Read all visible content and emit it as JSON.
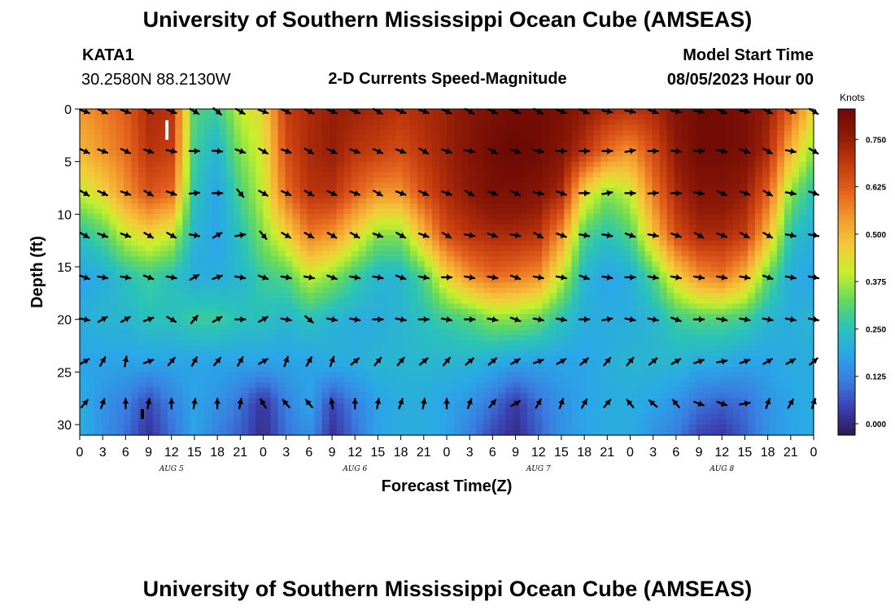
{
  "header": {
    "title": "University of Southern Mississippi Ocean Cube (AMSEAS)",
    "station_id": "KATA1",
    "coordinates": "30.2580N  88.2130W",
    "subtitle": "2-D Currents Speed-Magnitude",
    "model_start_label": "Model Start Time",
    "model_start_value": "08/05/2023 Hour 00"
  },
  "footer": {
    "title": "University of Southern Mississippi Ocean Cube (AMSEAS)"
  },
  "colors": {
    "background": "#ffffff",
    "scale": [
      "#2b1a4f",
      "#3b3fb0",
      "#3a7de0",
      "#2aa7e8",
      "#2bc3b6",
      "#66d95c",
      "#c8ef2c",
      "#f5c83a",
      "#f29b2e",
      "#e3601d",
      "#c23a0e",
      "#8f1a08",
      "#6e0a04"
    ]
  },
  "chart_data": {
    "type": "heatmap",
    "title": "2-D Currents Speed-Magnitude",
    "xlabel": "Forecast Time(Z)",
    "ylabel": "Depth (ft)",
    "units": "Knots",
    "xlim_hours": [
      0,
      96
    ],
    "ylim_ft": [
      0,
      31
    ],
    "x_tick_labels": [
      "0",
      "3",
      "6",
      "9",
      "12",
      "15",
      "18",
      "21",
      "0",
      "3",
      "6",
      "9",
      "12",
      "15",
      "18",
      "21",
      "0",
      "3",
      "6",
      "9",
      "12",
      "15",
      "18",
      "21",
      "0",
      "3",
      "6",
      "9",
      "12",
      "15",
      "18",
      "21",
      "0"
    ],
    "date_labels": [
      {
        "hour": 12,
        "label": "AUG 5"
      },
      {
        "hour": 36,
        "label": "AUG 6"
      },
      {
        "hour": 60,
        "label": "AUG 7"
      },
      {
        "hour": 84,
        "label": "AUG 8"
      }
    ],
    "y_ticks": [
      0,
      5,
      10,
      15,
      20,
      25,
      30
    ],
    "y_tick_labels": [
      "0",
      "5",
      "10",
      "15",
      "20",
      "25",
      "30"
    ],
    "colorbar": {
      "label": "Knots",
      "range": [
        -0.03,
        0.83
      ],
      "ticks": [
        "0.750",
        "0.625",
        "0.500",
        "0.375",
        "0.250",
        "0.125",
        "0.000"
      ],
      "tick_values": [
        0.75,
        0.625,
        0.5,
        0.375,
        0.25,
        0.125,
        0.0
      ]
    },
    "grid_hours": [
      0,
      3,
      6,
      9,
      12,
      15,
      18,
      21,
      24,
      27,
      30,
      33,
      36,
      39,
      42,
      45,
      48,
      51,
      54,
      57,
      60,
      63,
      66,
      69,
      72,
      75,
      78,
      81,
      84,
      87,
      90,
      93,
      96
    ],
    "grid_depths_ft": [
      0,
      4,
      8,
      12,
      16,
      20,
      24,
      28,
      31
    ],
    "speed_knots": [
      [
        0.55,
        0.58,
        0.62,
        0.72,
        0.7,
        0.3,
        0.28,
        0.4,
        0.45,
        0.68,
        0.72,
        0.75,
        0.74,
        0.72,
        0.7,
        0.72,
        0.74,
        0.78,
        0.8,
        0.82,
        0.82,
        0.8,
        0.76,
        0.72,
        0.7,
        0.72,
        0.78,
        0.82,
        0.82,
        0.8,
        0.75,
        0.62,
        0.45
      ],
      [
        0.5,
        0.55,
        0.6,
        0.7,
        0.68,
        0.28,
        0.22,
        0.35,
        0.42,
        0.65,
        0.72,
        0.75,
        0.7,
        0.68,
        0.65,
        0.7,
        0.74,
        0.78,
        0.82,
        0.84,
        0.82,
        0.78,
        0.7,
        0.6,
        0.55,
        0.65,
        0.76,
        0.82,
        0.82,
        0.8,
        0.72,
        0.5,
        0.35
      ],
      [
        0.4,
        0.45,
        0.55,
        0.64,
        0.6,
        0.25,
        0.18,
        0.3,
        0.4,
        0.6,
        0.7,
        0.7,
        0.62,
        0.55,
        0.55,
        0.65,
        0.72,
        0.76,
        0.8,
        0.8,
        0.78,
        0.72,
        0.45,
        0.35,
        0.4,
        0.58,
        0.72,
        0.78,
        0.78,
        0.75,
        0.62,
        0.35,
        0.25
      ],
      [
        0.25,
        0.3,
        0.4,
        0.45,
        0.4,
        0.22,
        0.18,
        0.25,
        0.35,
        0.45,
        0.58,
        0.55,
        0.45,
        0.35,
        0.35,
        0.5,
        0.65,
        0.7,
        0.72,
        0.72,
        0.7,
        0.55,
        0.3,
        0.25,
        0.3,
        0.48,
        0.65,
        0.72,
        0.72,
        0.68,
        0.5,
        0.25,
        0.2
      ],
      [
        0.18,
        0.2,
        0.25,
        0.28,
        0.25,
        0.2,
        0.2,
        0.22,
        0.28,
        0.3,
        0.4,
        0.35,
        0.28,
        0.22,
        0.22,
        0.3,
        0.45,
        0.55,
        0.6,
        0.58,
        0.55,
        0.4,
        0.22,
        0.18,
        0.2,
        0.3,
        0.45,
        0.55,
        0.58,
        0.5,
        0.32,
        0.2,
        0.18
      ],
      [
        0.2,
        0.22,
        0.22,
        0.25,
        0.25,
        0.28,
        0.28,
        0.25,
        0.25,
        0.22,
        0.25,
        0.22,
        0.2,
        0.2,
        0.22,
        0.25,
        0.28,
        0.3,
        0.35,
        0.35,
        0.32,
        0.25,
        0.2,
        0.2,
        0.2,
        0.22,
        0.28,
        0.3,
        0.3,
        0.28,
        0.22,
        0.2,
        0.22
      ],
      [
        0.18,
        0.18,
        0.18,
        0.18,
        0.18,
        0.18,
        0.18,
        0.18,
        0.18,
        0.18,
        0.18,
        0.2,
        0.2,
        0.22,
        0.22,
        0.22,
        0.22,
        0.22,
        0.2,
        0.18,
        0.18,
        0.18,
        0.18,
        0.2,
        0.22,
        0.22,
        0.22,
        0.2,
        0.2,
        0.18,
        0.18,
        0.2,
        0.2
      ],
      [
        0.2,
        0.15,
        0.12,
        0.05,
        0.12,
        0.18,
        0.15,
        0.1,
        0.02,
        0.12,
        0.18,
        0.05,
        0.12,
        0.18,
        0.2,
        0.2,
        0.18,
        0.15,
        0.1,
        0.03,
        0.1,
        0.15,
        0.18,
        0.2,
        0.2,
        0.18,
        0.15,
        0.1,
        0.08,
        0.1,
        0.15,
        0.18,
        0.2
      ],
      [
        0.2,
        0.15,
        0.1,
        0.02,
        0.1,
        0.18,
        0.12,
        0.08,
        0.01,
        0.1,
        0.15,
        0.02,
        0.1,
        0.18,
        0.2,
        0.2,
        0.18,
        0.12,
        0.05,
        0.01,
        0.08,
        0.15,
        0.18,
        0.2,
        0.2,
        0.15,
        0.12,
        0.05,
        0.03,
        0.08,
        0.15,
        0.18,
        0.2
      ]
    ],
    "vector_hours": [
      0,
      3,
      6,
      9,
      12,
      15,
      18,
      21,
      24,
      27,
      30,
      33,
      36,
      39,
      42,
      45,
      48,
      51,
      54,
      57,
      60,
      63,
      66,
      69,
      72,
      75,
      78,
      81,
      84,
      87,
      90,
      93,
      96
    ],
    "vector_depths_ft": [
      0,
      4,
      8,
      12,
      16,
      20,
      24,
      28
    ],
    "vector_direction_deg": [
      [
        110,
        115,
        110,
        115,
        110,
        120,
        130,
        120,
        110,
        115,
        115,
        110,
        110,
        120,
        110,
        110,
        115,
        120,
        115,
        110,
        120,
        110,
        115,
        100,
        100,
        110,
        100,
        100,
        115,
        100,
        115,
        110,
        120
      ],
      [
        115,
        110,
        115,
        110,
        100,
        90,
        95,
        110,
        120,
        110,
        120,
        115,
        110,
        115,
        110,
        120,
        110,
        100,
        120,
        110,
        100,
        90,
        90,
        90,
        80,
        90,
        95,
        90,
        100,
        110,
        120,
        100,
        120
      ],
      [
        120,
        115,
        110,
        120,
        110,
        85,
        90,
        140,
        120,
        115,
        120,
        115,
        110,
        120,
        110,
        115,
        110,
        120,
        110,
        115,
        100,
        110,
        90,
        80,
        90,
        85,
        90,
        100,
        115,
        110,
        120,
        100,
        110
      ],
      [
        120,
        110,
        110,
        120,
        120,
        100,
        60,
        80,
        140,
        120,
        120,
        120,
        120,
        110,
        120,
        110,
        120,
        100,
        110,
        100,
        120,
        110,
        100,
        100,
        110,
        100,
        110,
        120,
        110,
        120,
        120,
        100,
        100
      ],
      [
        110,
        100,
        100,
        110,
        100,
        60,
        70,
        100,
        110,
        100,
        100,
        110,
        100,
        100,
        110,
        100,
        90,
        100,
        100,
        110,
        100,
        100,
        110,
        100,
        90,
        100,
        100,
        100,
        100,
        100,
        110,
        100,
        100
      ],
      [
        100,
        60,
        60,
        70,
        120,
        40,
        60,
        90,
        60,
        100,
        130,
        100,
        100,
        90,
        100,
        90,
        100,
        90,
        100,
        110,
        100,
        100,
        90,
        80,
        100,
        100,
        110,
        90,
        100,
        100,
        100,
        100,
        100
      ],
      [
        60,
        30,
        10,
        70,
        40,
        30,
        40,
        30,
        60,
        20,
        30,
        20,
        50,
        40,
        40,
        50,
        40,
        50,
        50,
        60,
        70,
        60,
        50,
        40,
        40,
        50,
        60,
        70,
        80,
        70,
        60,
        60,
        50
      ],
      [
        40,
        20,
        0,
        10,
        0,
        10,
        0,
        10,
        -30,
        -40,
        -40,
        -10,
        0,
        10,
        20,
        10,
        0,
        20,
        40,
        60,
        30,
        20,
        30,
        40,
        -40,
        -50,
        -40,
        110,
        110,
        80,
        20,
        30,
        20
      ]
    ],
    "tick_markers": [
      {
        "hour": 11.4,
        "depth_ft": 2,
        "label": "tick"
      },
      {
        "hour": 8.2,
        "depth_ft": 29,
        "label": "tick"
      }
    ]
  }
}
